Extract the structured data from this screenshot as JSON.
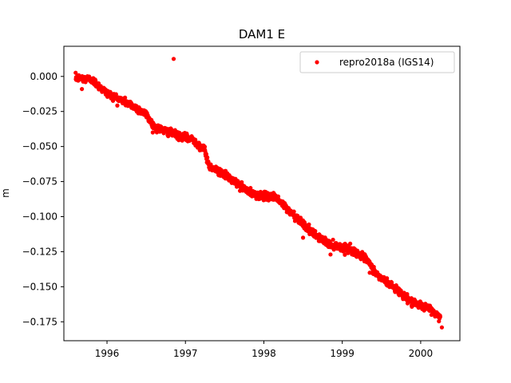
{
  "chart_data": {
    "type": "scatter",
    "title": "DAM1 E",
    "xlabel": "",
    "ylabel": "m",
    "xlim": [
      1995.45,
      2000.5
    ],
    "ylim": [
      -0.1885,
      0.0215
    ],
    "x_ticks": [
      1996,
      1997,
      1998,
      1999,
      2000
    ],
    "x_tick_labels": [
      "1996",
      "1997",
      "1998",
      "1999",
      "2000"
    ],
    "y_ticks": [
      0.0,
      -0.025,
      -0.05,
      -0.075,
      -0.1,
      -0.125,
      -0.15,
      -0.175
    ],
    "y_tick_labels": [
      "0.000",
      "−0.025",
      "−0.050",
      "−0.075",
      "−0.100",
      "−0.125",
      "−0.150",
      "−0.175"
    ],
    "grid": false,
    "legend_position": "top-right",
    "series": [
      {
        "name": "repro2018a (IGS14)",
        "color": "#ff0000",
        "marker": "circle",
        "trend_points": [
          [
            1995.6,
            -0.001
          ],
          [
            1995.8,
            -0.002
          ],
          [
            1996.0,
            -0.012
          ],
          [
            1996.3,
            -0.02
          ],
          [
            1996.5,
            -0.027
          ],
          [
            1996.6,
            -0.036
          ],
          [
            1996.9,
            -0.042
          ],
          [
            1997.1,
            -0.045
          ],
          [
            1997.25,
            -0.053
          ],
          [
            1997.3,
            -0.064
          ],
          [
            1997.5,
            -0.07
          ],
          [
            1997.7,
            -0.078
          ],
          [
            1997.85,
            -0.084
          ],
          [
            1998.0,
            -0.085
          ],
          [
            1998.15,
            -0.086
          ],
          [
            1998.3,
            -0.095
          ],
          [
            1998.45,
            -0.102
          ],
          [
            1998.6,
            -0.111
          ],
          [
            1998.85,
            -0.12
          ],
          [
            1999.1,
            -0.123
          ],
          [
            1999.3,
            -0.13
          ],
          [
            1999.45,
            -0.142
          ],
          [
            1999.7,
            -0.152
          ],
          [
            1999.9,
            -0.162
          ],
          [
            2000.1,
            -0.165
          ],
          [
            2000.25,
            -0.172
          ]
        ],
        "outliers": [
          [
            1996.85,
            0.0125
          ],
          [
            1995.68,
            -0.009
          ],
          [
            1998.5,
            -0.115
          ],
          [
            1998.85,
            -0.127
          ],
          [
            1999.35,
            -0.14
          ],
          [
            2000.27,
            -0.179
          ]
        ]
      }
    ]
  }
}
